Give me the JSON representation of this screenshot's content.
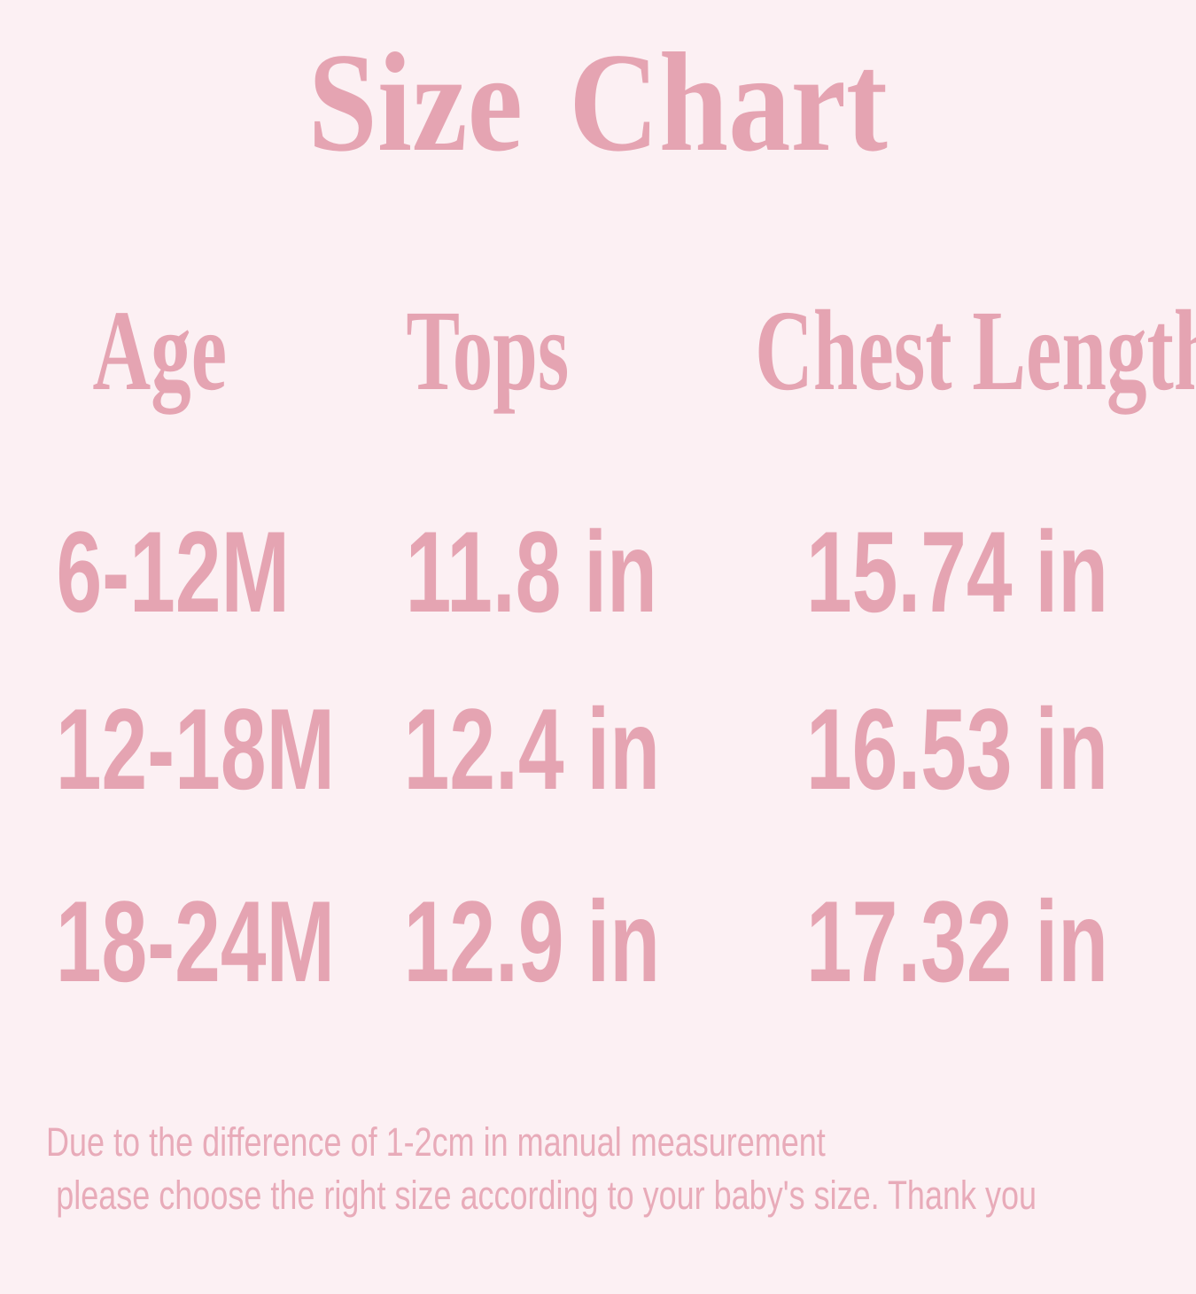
{
  "title": "Size Chart",
  "table": {
    "columns": {
      "age": "Age",
      "tops": "Tops",
      "chest_length": "Chest Length"
    },
    "rows": [
      {
        "age": "6-12M",
        "tops": "11.8 in",
        "chest_length": "15.74 in"
      },
      {
        "age": "12-18M",
        "tops": "12.4 in",
        "chest_length": "16.53 in"
      },
      {
        "age": "18-24M",
        "tops": "12.9 in",
        "chest_length": "17.32 in"
      }
    ]
  },
  "note": {
    "line1": "Due to the difference of 1-2cm in manual measurement",
    "line2": "please choose the right size according to your baby's size. Thank you"
  },
  "colors": {
    "background": "#fcf0f3",
    "text_pink": "#e5a4b2",
    "note_pink": "#e8abb9"
  },
  "chart_data": {
    "type": "table",
    "title": "Size Chart",
    "columns": [
      "Age",
      "Tops",
      "Chest Length"
    ],
    "rows": [
      [
        "6-12M",
        "11.8 in",
        "15.74 in"
      ],
      [
        "12-18M",
        "12.4 in",
        "16.53 in"
      ],
      [
        "18-24M",
        "12.9 in",
        "17.32 in"
      ]
    ],
    "tops_in": [
      11.8,
      12.4,
      12.9
    ],
    "chest_length_in": [
      15.74,
      16.53,
      17.32
    ],
    "note": "Due to the difference of 1-2cm in manual measurement please choose the right size according to your baby's size. Thank you"
  }
}
